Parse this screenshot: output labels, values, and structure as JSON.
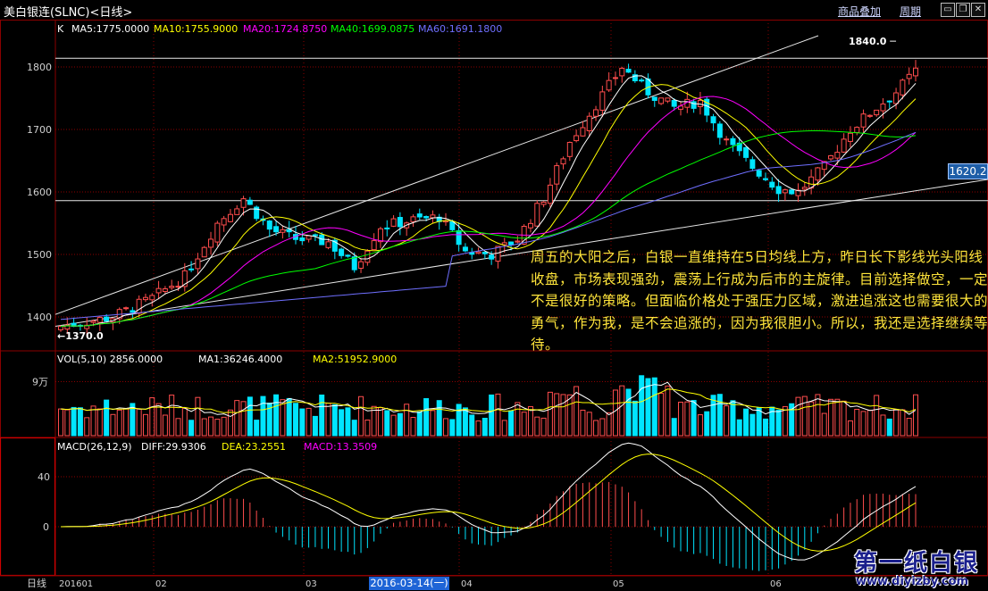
{
  "window": {
    "title": "美白银连(SLNC)<日线>",
    "overlay_link": "商品叠加",
    "period_link": "周期"
  },
  "indicators": {
    "kline_label": "K",
    "ma5": "MA5:1775.0000",
    "ma10": "MA10:1755.9000",
    "ma20": "MA20:1724.8750",
    "ma40": "MA40:1699.0875",
    "ma60": "MA60:1691.1800",
    "vol": "VOL(5,10) 2856.0000",
    "vol_ma1": "MA1:36246.4000",
    "vol_ma2": "MA2:51952.9000",
    "macd_name": "MACD(26,12,9)",
    "diff": "DIFF:29.9306",
    "dea": "DEA:23.2551",
    "macd": "MACD:13.3509"
  },
  "annotation": "周五的大阳之后，白银一直维持在5日均线上方，昨日长下影线光头阳线收盘，市场表现强劲，震荡上行成为后市的主旋律。目前选择做空，一定不是很好的策略。但面临价格处于强压力区域，激进追涨这也需要很大的勇气，作为我，是不会追涨的，因为我很胆小。所以，我还是选择继续等待。",
  "bottom_bar": {
    "period_label": "日线",
    "cursor_date": "2016-03-14(一)"
  },
  "price_tag": "1620.2",
  "watermark": {
    "name": "第一纸白银",
    "url": "www.diyizby.com"
  },
  "colors": {
    "up": "#ff4d4d",
    "down": "#00e5ff",
    "ma5": "#ffffff",
    "ma10": "#ffff00",
    "ma20": "#ff00ff",
    "ma40": "#00ff00",
    "ma60": "#6f6fff",
    "grid": "#8b0000",
    "axis_text": "#d0d0d0"
  },
  "chart_data": {
    "type": "candlestick",
    "x_ticks": [
      "201601",
      "02",
      "03",
      "04",
      "05",
      "06"
    ],
    "price_axis": {
      "ticks": [
        1400,
        1500,
        1600,
        1700,
        1800
      ]
    },
    "volume_axis": {
      "ticks": [
        "9万"
      ]
    },
    "macd_axis": {
      "ticks": [
        0,
        40
      ]
    },
    "annotations": {
      "high": "1840.0",
      "low": "1370.0"
    },
    "price_range": [
      1370,
      1840
    ],
    "last_close": 1794,
    "series": [
      "K",
      "MA5",
      "MA10",
      "MA20",
      "MA40",
      "MA60",
      "VOL",
      "MA1",
      "MA2",
      "DIFF",
      "DEA",
      "MACD"
    ]
  }
}
